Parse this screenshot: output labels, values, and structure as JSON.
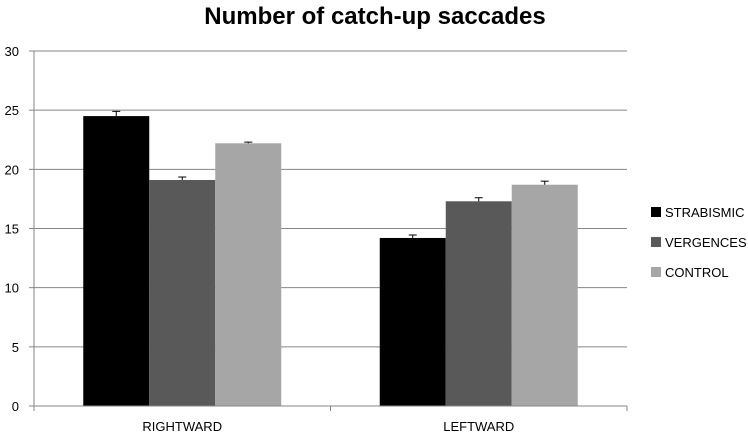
{
  "chart_data": {
    "type": "bar",
    "title": "Number of catch-up saccades",
    "xlabel": "",
    "ylabel": "",
    "categories": [
      "RIGHTWARD",
      "LEFTWARD"
    ],
    "series": [
      {
        "name": "STRABISMIC",
        "values": [
          24.5,
          14.2
        ],
        "errors": [
          0.4,
          0.25
        ],
        "color": "#000000"
      },
      {
        "name": "VERGENCES",
        "values": [
          19.1,
          17.3
        ],
        "errors": [
          0.25,
          0.3
        ],
        "color": "#595959"
      },
      {
        "name": "CONTROL",
        "values": [
          22.2,
          18.7
        ],
        "errors": [
          0.1,
          0.3
        ],
        "color": "#a6a6a6"
      }
    ],
    "ylim": [
      0,
      30
    ],
    "yticks": [
      0,
      5,
      10,
      15,
      20,
      25,
      30
    ],
    "grid": true,
    "legend_position": "right"
  }
}
